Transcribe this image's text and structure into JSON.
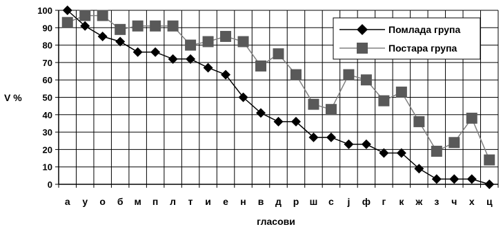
{
  "chart_data": {
    "type": "line",
    "title": "",
    "xlabel": "гласови",
    "ylabel": "V %",
    "ylim": [
      0,
      100
    ],
    "yticks": [
      0,
      10,
      20,
      30,
      40,
      50,
      60,
      70,
      80,
      90,
      100
    ],
    "grid": "on",
    "legend_position": "top-right",
    "categories": [
      "а",
      "у",
      "о",
      "б",
      "м",
      "п",
      "л",
      "т",
      "и",
      "е",
      "н",
      "в",
      "д",
      "р",
      "ш",
      "с",
      "ј",
      "ф",
      "г",
      "к",
      "ж",
      "з",
      "ч",
      "х",
      "ц"
    ],
    "series": [
      {
        "name": "Помлада група",
        "marker": "diamond",
        "line_color": "#000000",
        "marker_color": "#000000",
        "values": [
          100,
          91,
          85,
          82,
          76,
          76,
          72,
          72,
          67,
          63,
          50,
          41,
          36,
          36,
          27,
          27,
          23,
          23,
          18,
          18,
          9,
          3,
          3,
          3,
          0
        ]
      },
      {
        "name": "Постара група",
        "marker": "square",
        "line_color": "#808080",
        "marker_color": "#595959",
        "values": [
          93,
          97,
          97,
          89,
          91,
          91,
          91,
          80,
          82,
          85,
          82,
          68,
          75,
          63,
          46,
          43,
          63,
          60,
          48,
          53,
          36,
          19,
          24,
          38,
          14
        ]
      }
    ]
  }
}
